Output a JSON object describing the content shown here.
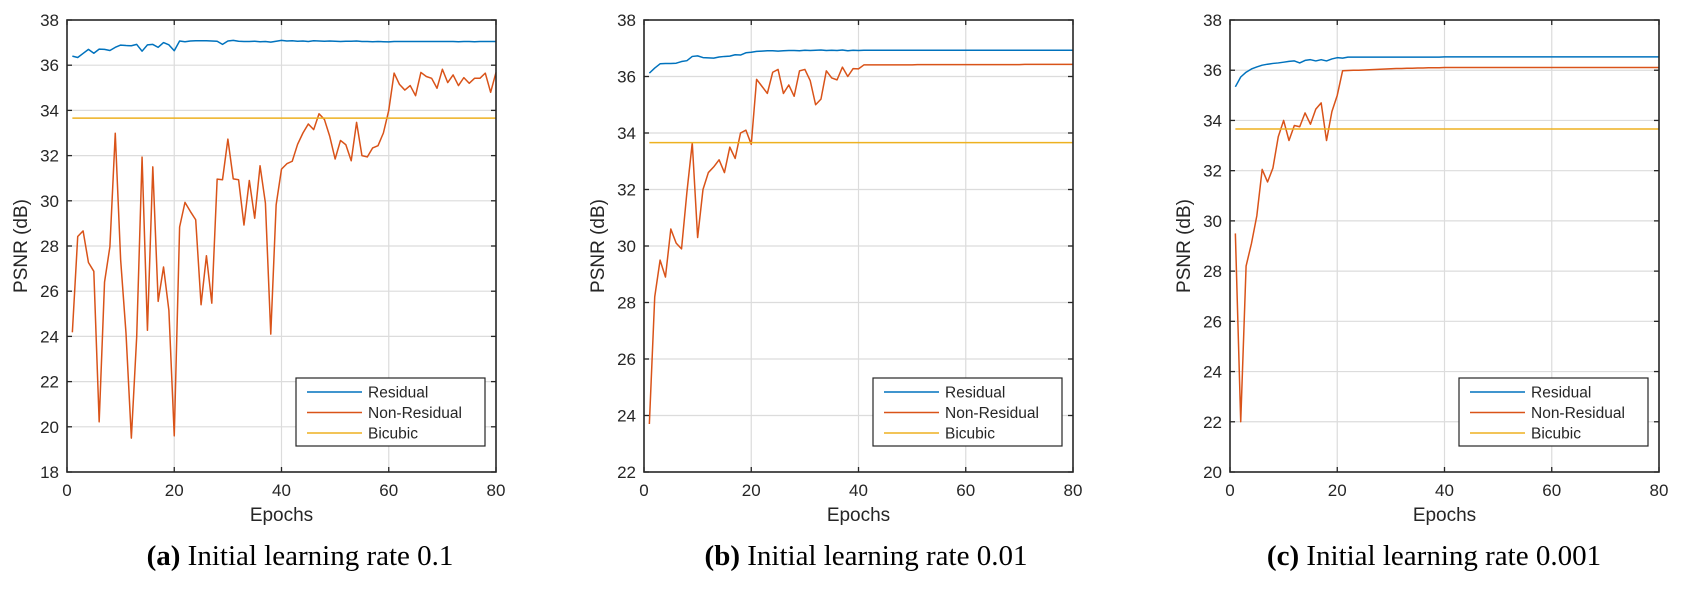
{
  "figure": {
    "panels": [
      {
        "label": "(a)",
        "caption": "Initial learning rate 0.1"
      },
      {
        "label": "(b)",
        "caption": "Initial learning rate 0.01"
      },
      {
        "label": "(c)",
        "caption": "Initial learning rate 0.001"
      }
    ]
  },
  "chart_data": [
    {
      "type": "line",
      "title": "",
      "caption": "(a) Initial learning rate 0.1",
      "xlabel": "Epochs",
      "ylabel": "PSNR (dB)",
      "xlim": [
        0,
        80
      ],
      "ylim": [
        18,
        38
      ],
      "xticks": [
        0,
        20,
        40,
        60,
        80
      ],
      "yticks": [
        18,
        20,
        22,
        24,
        26,
        28,
        30,
        32,
        34,
        36,
        38
      ],
      "grid": true,
      "legend_position": "bottom-right",
      "series": [
        {
          "name": "Residual",
          "color": "#0072BD",
          "x_start": 1,
          "values": [
            36.4,
            36.34,
            36.52,
            36.7,
            36.53,
            36.71,
            36.7,
            36.65,
            36.79,
            36.89,
            36.87,
            36.86,
            36.92,
            36.62,
            36.9,
            36.92,
            36.79,
            37.0,
            36.9,
            36.64,
            37.07,
            37.04,
            37.07,
            37.08,
            37.08,
            37.08,
            37.07,
            37.06,
            36.92,
            37.07,
            37.1,
            37.06,
            37.05,
            37.05,
            37.06,
            37.04,
            37.05,
            37.02,
            37.06,
            37.1,
            37.07,
            37.08,
            37.06,
            37.07,
            37.05,
            37.08,
            37.07,
            37.06,
            37.07,
            37.06,
            37.05,
            37.06,
            37.06,
            37.07,
            37.05,
            37.05,
            37.04,
            37.05,
            37.04,
            37.03,
            37.05,
            37.05,
            37.05,
            37.05,
            37.05,
            37.05,
            37.05,
            37.05,
            37.05,
            37.05,
            37.05,
            37.05,
            37.04,
            37.05,
            37.05,
            37.04,
            37.05,
            37.05,
            37.05,
            37.05
          ]
        },
        {
          "name": "Non-Residual",
          "color": "#D95319",
          "x_start": 1,
          "values": [
            24.18,
            28.42,
            28.67,
            27.27,
            26.88,
            20.22,
            26.4,
            27.97,
            32.99,
            27.4,
            24.15,
            19.5,
            24.0,
            31.93,
            24.27,
            31.5,
            25.55,
            27.07,
            25.15,
            19.6,
            28.84,
            29.93,
            29.53,
            29.16,
            25.4,
            27.57,
            25.47,
            30.96,
            30.93,
            32.73,
            30.97,
            30.93,
            28.93,
            30.9,
            29.23,
            31.55,
            29.9,
            24.1,
            29.82,
            31.4,
            31.64,
            31.75,
            32.5,
            33.0,
            33.4,
            33.15,
            33.85,
            33.6,
            32.85,
            31.85,
            32.67,
            32.48,
            31.77,
            33.47,
            32.0,
            31.94,
            32.34,
            32.44,
            33.0,
            34.0,
            35.65,
            35.15,
            34.9,
            35.1,
            34.65,
            35.68,
            35.5,
            35.42,
            34.98,
            35.82,
            35.23,
            35.57,
            35.1,
            35.45,
            35.2,
            35.42,
            35.42,
            35.65,
            34.8,
            35.68
          ]
        },
        {
          "name": "Bicubic",
          "color": "#EDB120",
          "x_start": 1,
          "constant": 33.66
        }
      ]
    },
    {
      "type": "line",
      "title": "",
      "caption": "(b) Initial learning rate 0.01",
      "xlabel": "Epochs",
      "ylabel": "PSNR (dB)",
      "xlim": [
        0,
        80
      ],
      "ylim": [
        22,
        38
      ],
      "xticks": [
        0,
        20,
        40,
        60,
        80
      ],
      "yticks": [
        22,
        24,
        26,
        28,
        30,
        32,
        34,
        36,
        38
      ],
      "grid": true,
      "legend_position": "bottom-right",
      "series": [
        {
          "name": "Residual",
          "color": "#0072BD",
          "x_start": 1,
          "values": [
            36.12,
            36.3,
            36.45,
            36.46,
            36.46,
            36.47,
            36.53,
            36.56,
            36.71,
            36.73,
            36.67,
            36.66,
            36.65,
            36.69,
            36.71,
            36.72,
            36.77,
            36.76,
            36.84,
            36.86,
            36.89,
            36.9,
            36.91,
            36.91,
            36.9,
            36.91,
            36.92,
            36.92,
            36.91,
            36.93,
            36.92,
            36.93,
            36.94,
            36.92,
            36.93,
            36.92,
            36.94,
            36.91,
            36.93,
            36.92,
            36.93,
            36.93,
            36.93,
            36.93,
            36.93,
            36.93,
            36.93,
            36.93,
            36.93,
            36.93,
            36.93,
            36.93,
            36.93,
            36.93,
            36.93,
            36.93,
            36.93,
            36.93,
            36.93,
            36.93,
            36.93,
            36.93,
            36.93,
            36.93,
            36.93,
            36.93,
            36.93,
            36.93,
            36.93,
            36.93,
            36.93,
            36.93,
            36.93,
            36.93,
            36.93,
            36.93,
            36.93,
            36.93,
            36.93,
            36.93
          ]
        },
        {
          "name": "Non-Residual",
          "color": "#D95319",
          "x_start": 1,
          "values": [
            23.7,
            28.2,
            29.5,
            28.9,
            30.6,
            30.1,
            29.9,
            31.9,
            33.65,
            30.3,
            32.0,
            32.6,
            32.8,
            33.05,
            32.6,
            33.5,
            33.1,
            34.0,
            34.1,
            33.6,
            35.9,
            35.65,
            35.4,
            36.15,
            36.25,
            35.4,
            35.7,
            35.3,
            36.2,
            36.25,
            35.85,
            35.0,
            35.2,
            36.2,
            35.95,
            35.88,
            36.33,
            36.0,
            36.28,
            36.27,
            36.41,
            36.41,
            36.41,
            36.41,
            36.41,
            36.41,
            36.41,
            36.41,
            36.41,
            36.41,
            36.42,
            36.42,
            36.42,
            36.42,
            36.42,
            36.42,
            36.42,
            36.42,
            36.42,
            36.42,
            36.42,
            36.42,
            36.42,
            36.42,
            36.42,
            36.42,
            36.42,
            36.42,
            36.42,
            36.42,
            36.43,
            36.43,
            36.43,
            36.43,
            36.43,
            36.43,
            36.43,
            36.43,
            36.43,
            36.43
          ]
        },
        {
          "name": "Bicubic",
          "color": "#EDB120",
          "x_start": 1,
          "constant": 33.66
        }
      ]
    },
    {
      "type": "line",
      "title": "",
      "caption": "(c) Initial learning rate 0.001",
      "xlabel": "Epochs",
      "ylabel": "PSNR (dB)",
      "xlim": [
        0,
        80
      ],
      "ylim": [
        20,
        38
      ],
      "xticks": [
        0,
        20,
        40,
        60,
        80
      ],
      "yticks": [
        20,
        22,
        24,
        26,
        28,
        30,
        32,
        34,
        36,
        38
      ],
      "grid": true,
      "legend_position": "bottom-right",
      "series": [
        {
          "name": "Residual",
          "color": "#0072BD",
          "x_start": 1,
          "values": [
            35.34,
            35.73,
            35.92,
            36.05,
            36.13,
            36.2,
            36.24,
            36.27,
            36.29,
            36.32,
            36.35,
            36.37,
            36.29,
            36.39,
            36.42,
            36.37,
            36.42,
            36.37,
            36.45,
            36.5,
            36.48,
            36.52,
            36.52,
            36.52,
            36.52,
            36.52,
            36.52,
            36.52,
            36.52,
            36.52,
            36.52,
            36.52,
            36.52,
            36.52,
            36.52,
            36.52,
            36.52,
            36.52,
            36.52,
            36.53,
            36.53,
            36.53,
            36.53,
            36.53,
            36.53,
            36.53,
            36.53,
            36.53,
            36.53,
            36.53,
            36.53,
            36.53,
            36.53,
            36.53,
            36.53,
            36.53,
            36.53,
            36.53,
            36.53,
            36.53,
            36.53,
            36.53,
            36.53,
            36.53,
            36.53,
            36.53,
            36.53,
            36.53,
            36.53,
            36.53,
            36.53,
            36.53,
            36.53,
            36.53,
            36.53,
            36.53,
            36.53,
            36.53,
            36.53,
            36.53
          ]
        },
        {
          "name": "Non-Residual",
          "color": "#D95319",
          "x_start": 1,
          "values": [
            29.5,
            22.0,
            28.2,
            29.1,
            30.2,
            32.05,
            31.55,
            32.1,
            33.35,
            34.0,
            33.2,
            33.8,
            33.75,
            34.3,
            33.85,
            34.45,
            34.7,
            33.2,
            34.35,
            35.0,
            35.98,
            35.99,
            36.0,
            36.0,
            36.01,
            36.02,
            36.03,
            36.04,
            36.05,
            36.06,
            36.07,
            36.07,
            36.08,
            36.08,
            36.09,
            36.09,
            36.1,
            36.1,
            36.1,
            36.11,
            36.11,
            36.11,
            36.11,
            36.11,
            36.11,
            36.11,
            36.11,
            36.11,
            36.11,
            36.11,
            36.11,
            36.11,
            36.11,
            36.11,
            36.11,
            36.11,
            36.11,
            36.11,
            36.11,
            36.11,
            36.11,
            36.11,
            36.11,
            36.11,
            36.11,
            36.11,
            36.11,
            36.11,
            36.11,
            36.11,
            36.11,
            36.11,
            36.11,
            36.11,
            36.11,
            36.11,
            36.11,
            36.11,
            36.11,
            36.11
          ]
        },
        {
          "name": "Bicubic",
          "color": "#EDB120",
          "x_start": 1,
          "constant": 33.66
        }
      ]
    }
  ]
}
